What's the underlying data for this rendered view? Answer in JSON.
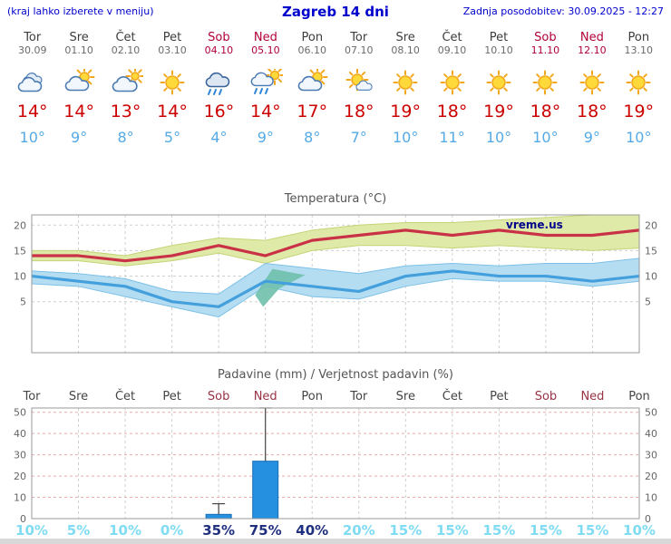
{
  "header": {
    "left_note": "(kraj lahko izberete v meniju)",
    "title": "Zagreb 14 dni",
    "updated": "Zadnja posodobitev: 30.09.2025 - 12:27"
  },
  "colors": {
    "accent_blue": "#0000cc",
    "temp_high_red": "#cc0000",
    "temp_low_blue": "#55aae5",
    "weekend_red": "#b00038",
    "weekday_gray": "#3c3c3c",
    "chart_text": "#666666",
    "prob_low": "#7fdcf2",
    "prob_high": "#20307f",
    "watermark_navy": "#00008b",
    "bar_blue": "#2590e0"
  },
  "forecast": {
    "days": [
      {
        "name": "Tor",
        "date": "30.09",
        "icon": "cloudy",
        "high": "14°",
        "low": "10°",
        "weekend": false
      },
      {
        "name": "Sre",
        "date": "01.10",
        "icon": "partly-cloudy",
        "high": "14°",
        "low": "9°",
        "weekend": false
      },
      {
        "name": "Čet",
        "date": "02.10",
        "icon": "mostly-cloudy",
        "high": "13°",
        "low": "8°",
        "weekend": false
      },
      {
        "name": "Pet",
        "date": "03.10",
        "icon": "sunny",
        "high": "14°",
        "low": "5°",
        "weekend": false
      },
      {
        "name": "Sob",
        "date": "04.10",
        "icon": "rain",
        "high": "16°",
        "low": "4°",
        "weekend": true
      },
      {
        "name": "Ned",
        "date": "05.10",
        "icon": "sun-rain",
        "high": "14°",
        "low": "9°",
        "weekend": true
      },
      {
        "name": "Pon",
        "date": "06.10",
        "icon": "partly-cloudy",
        "high": "17°",
        "low": "8°",
        "weekend": false
      },
      {
        "name": "Tor",
        "date": "07.10",
        "icon": "mostly-sunny",
        "high": "18°",
        "low": "7°",
        "weekend": false
      },
      {
        "name": "Sre",
        "date": "08.10",
        "icon": "sunny",
        "high": "19°",
        "low": "10°",
        "weekend": false
      },
      {
        "name": "Čet",
        "date": "09.10",
        "icon": "sunny",
        "high": "18°",
        "low": "11°",
        "weekend": false
      },
      {
        "name": "Pet",
        "date": "10.10",
        "icon": "sunny",
        "high": "19°",
        "low": "10°",
        "weekend": false
      },
      {
        "name": "Sob",
        "date": "11.10",
        "icon": "sunny",
        "high": "18°",
        "low": "10°",
        "weekend": true
      },
      {
        "name": "Ned",
        "date": "12.10",
        "icon": "sunny",
        "high": "18°",
        "low": "9°",
        "weekend": true
      },
      {
        "name": "Pon",
        "date": "13.10",
        "icon": "sunny",
        "high": "19°",
        "low": "10°",
        "weekend": false
      }
    ]
  },
  "chart_data": [
    {
      "type": "line",
      "title": "Temperatura (°C)",
      "watermark": "vreme.us",
      "x_labels": [
        "Tor",
        "Sre",
        "Čet",
        "Pet",
        "Sob",
        "Ned",
        "Pon",
        "Tor",
        "Sre",
        "Čet",
        "Pet",
        "Sob",
        "Ned",
        "Pon"
      ],
      "ylim": [
        -5,
        22
      ],
      "yticks": [
        5,
        10,
        15,
        20
      ],
      "grid": true,
      "legend_position": "none",
      "series": [
        {
          "name": "temperatura-max",
          "color": "#c93246",
          "values": [
            14,
            14,
            13,
            14,
            16,
            14,
            17,
            18,
            19,
            18,
            19,
            18,
            18,
            19
          ]
        },
        {
          "name": "temperatura-min",
          "color": "#44a0dc",
          "values": [
            10,
            9,
            8,
            5,
            4,
            9,
            8,
            7,
            10,
            11,
            10,
            10,
            9,
            10
          ]
        }
      ],
      "bands": [
        {
          "name": "max-range",
          "color": "#dfeaa8",
          "edge": "#c4d478",
          "upper": [
            15,
            15,
            14,
            16,
            17.5,
            17,
            19,
            20,
            20.5,
            20.5,
            21,
            21.5,
            22,
            23
          ],
          "lower": [
            13,
            13,
            12,
            13,
            14.5,
            12.5,
            15,
            16,
            16,
            15.5,
            16,
            15.5,
            15,
            15.5
          ]
        },
        {
          "name": "min-range",
          "color": "#b5ddf2",
          "edge": "#7cc0e8",
          "upper": [
            11,
            10.5,
            9.5,
            7,
            6.5,
            12.5,
            11.5,
            10.5,
            12,
            12.5,
            12,
            12.5,
            12.5,
            13.5
          ],
          "lower": [
            8.5,
            8,
            6,
            4,
            2,
            8,
            6,
            5.5,
            8,
            9.5,
            9,
            9,
            8,
            9
          ]
        }
      ],
      "overlap_patch": {
        "color": "#6fc0ac",
        "points": [
          [
            4.78,
            6.3
          ],
          [
            5.15,
            11.4
          ],
          [
            5.85,
            10.2
          ],
          [
            5.3,
            7.6
          ],
          [
            4.95,
            4.0
          ]
        ]
      }
    },
    {
      "type": "bar",
      "title": "Padavine (mm) / Verjetnost padavin (%)",
      "x_labels": [
        "Tor",
        "Sre",
        "Čet",
        "Pet",
        "Sob",
        "Ned",
        "Pon",
        "Tor",
        "Sre",
        "Čet",
        "Pet",
        "Sob",
        "Ned",
        "Pon"
      ],
      "weekend": [
        false,
        false,
        false,
        false,
        true,
        true,
        false,
        false,
        false,
        false,
        false,
        true,
        true,
        false
      ],
      "ylim": [
        0,
        52
      ],
      "yticks": [
        0,
        10,
        20,
        30,
        40,
        50
      ],
      "values": [
        0,
        0,
        0,
        0,
        2,
        27,
        0,
        0,
        0,
        0,
        0,
        0,
        0,
        0
      ],
      "whisker_high": [
        0,
        0,
        0,
        0,
        7,
        52,
        0,
        0,
        0,
        0,
        0,
        0,
        0,
        0
      ],
      "probabilities": [
        {
          "text": "10%",
          "level": "low"
        },
        {
          "text": "5%",
          "level": "low"
        },
        {
          "text": "10%",
          "level": "low"
        },
        {
          "text": "0%",
          "level": "low"
        },
        {
          "text": "35%",
          "level": "high"
        },
        {
          "text": "75%",
          "level": "high"
        },
        {
          "text": "40%",
          "level": "high"
        },
        {
          "text": "20%",
          "level": "low"
        },
        {
          "text": "15%",
          "level": "low"
        },
        {
          "text": "15%",
          "level": "low"
        },
        {
          "text": "15%",
          "level": "low"
        },
        {
          "text": "15%",
          "level": "low"
        },
        {
          "text": "15%",
          "level": "low"
        },
        {
          "text": "10%",
          "level": "low"
        }
      ]
    }
  ]
}
